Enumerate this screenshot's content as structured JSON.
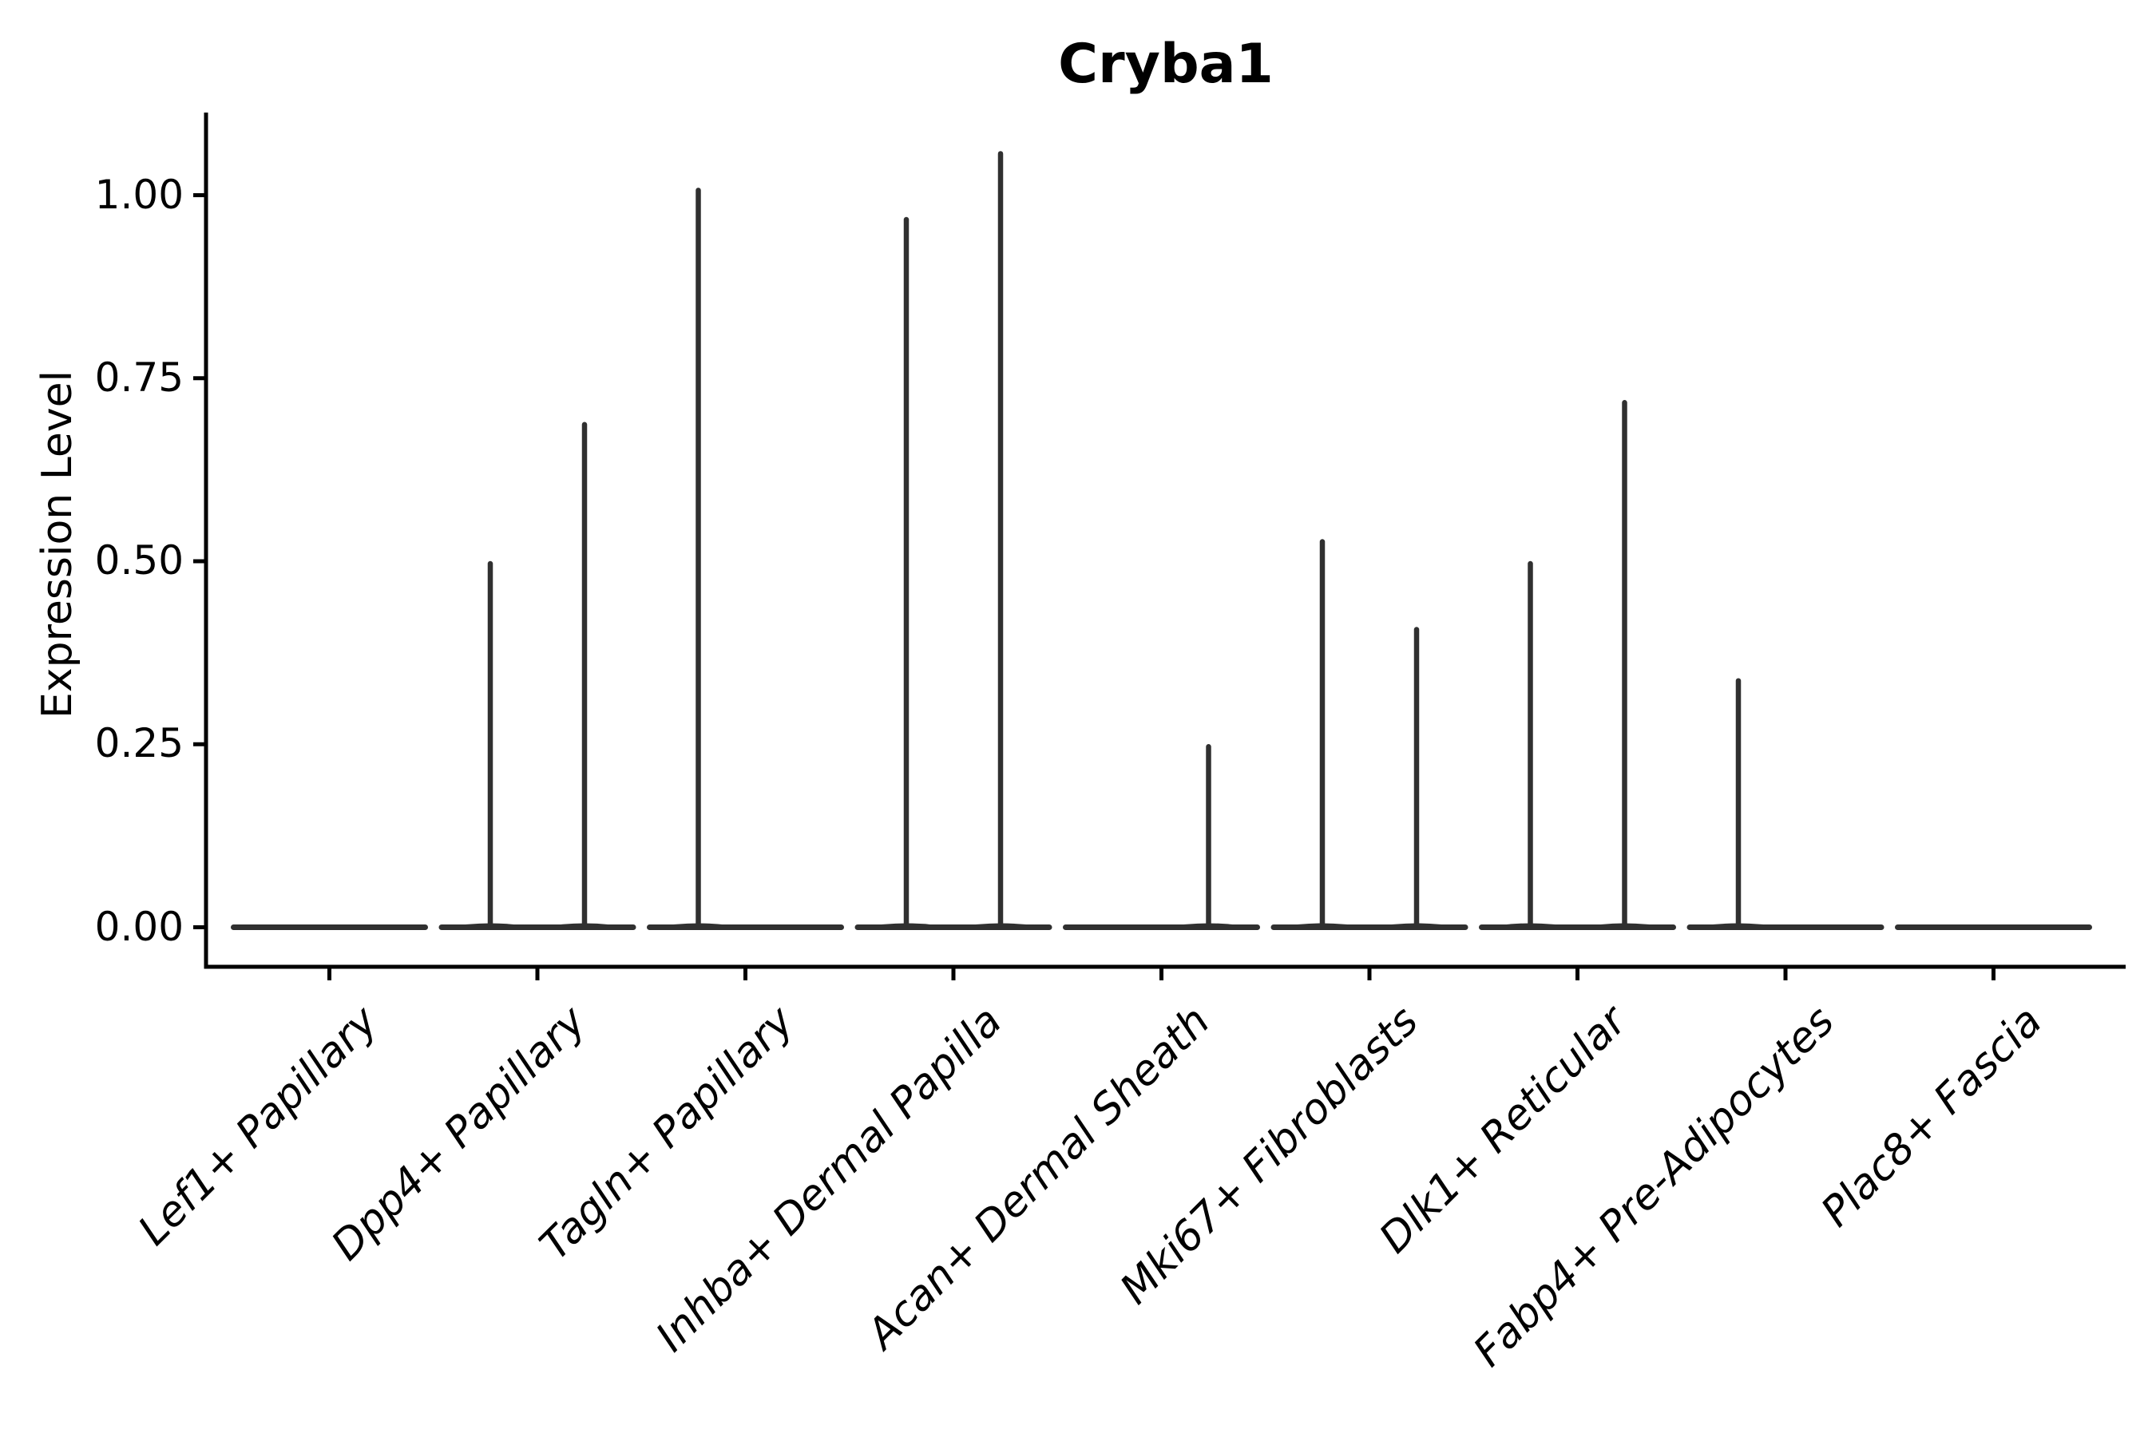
{
  "chart_data": {
    "type": "violin",
    "title": "Cryba1",
    "ylabel": "Expression Level",
    "xlabel": "",
    "categories": [
      "Lef1+ Papillary",
      "Dpp4+ Papillary",
      "Tagln+ Papillary",
      "Inhba+ Dermal Papilla",
      "Acan+ Dermal Sheath",
      "Mki67+ Fibroblasts",
      "Dlk1+ Reticular",
      "Fabp4+ Pre-Adipocytes",
      "Plac8+ Fascia"
    ],
    "ytick_labels": [
      "0.00",
      "0.25",
      "0.50",
      "0.75",
      "1.00"
    ],
    "ytick_values": [
      0,
      0.25,
      0.5,
      0.75,
      1.0
    ],
    "ylim": [
      -0.05,
      1.11
    ],
    "grid": false,
    "legend_position": "none",
    "description": "Violin plot of Cryba1 expression; each cell type has two side-by-side violins that collapse to a flat line at 0 with a thin vertical spike reaching the maximum expression value of the few expressing cells.",
    "series": [
      {
        "name": "left-violin",
        "max_values": [
          0,
          0.5,
          1.01,
          0.97,
          0,
          0.53,
          0.5,
          0.34,
          0
        ]
      },
      {
        "name": "right-violin",
        "max_values": [
          0,
          0.69,
          0,
          1.06,
          0.25,
          0.41,
          0.72,
          0,
          0
        ]
      }
    ],
    "colors": {
      "violin_stroke": "#303030",
      "axis": "#000000",
      "text": "#000000",
      "background": "#ffffff"
    }
  }
}
